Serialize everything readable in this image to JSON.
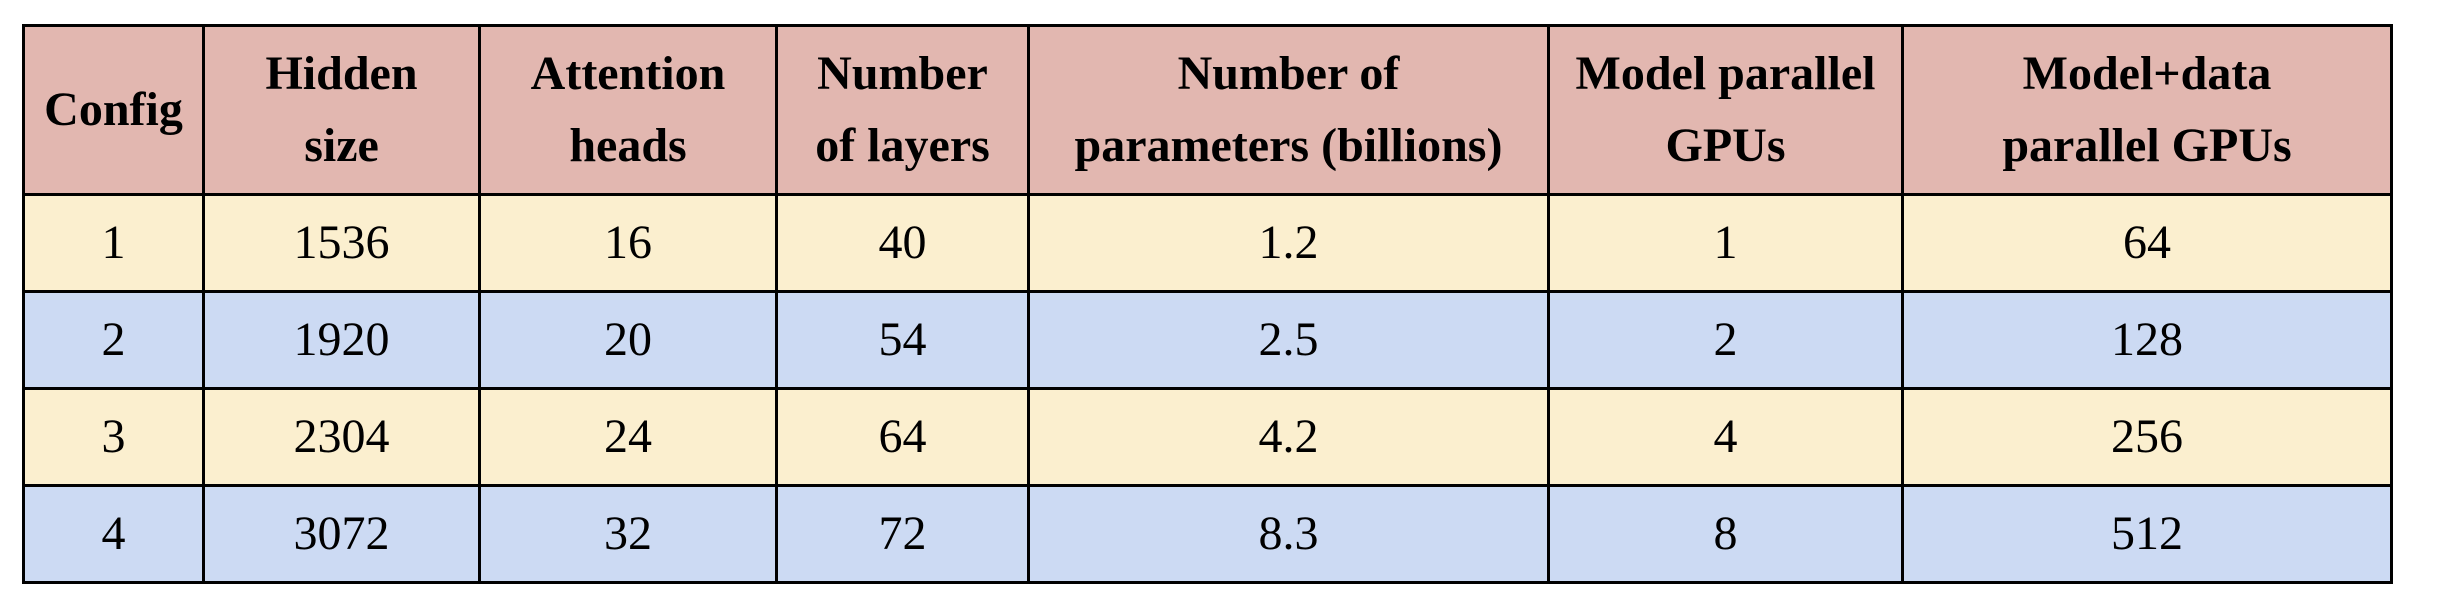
{
  "table": {
    "headers": [
      "Config",
      "Hidden\nsize",
      "Attention\nheads",
      "Number\nof layers",
      "Number of\nparameters (billions)",
      "Model parallel\nGPUs",
      "Model+data\nparallel GPUs"
    ],
    "rows": [
      [
        "1",
        "1536",
        "16",
        "40",
        "1.2",
        "1",
        "64"
      ],
      [
        "2",
        "1920",
        "20",
        "54",
        "2.5",
        "2",
        "128"
      ],
      [
        "3",
        "2304",
        "24",
        "64",
        "4.2",
        "4",
        "256"
      ],
      [
        "4",
        "3072",
        "32",
        "72",
        "8.3",
        "8",
        "512"
      ]
    ]
  },
  "colors": {
    "header_bg": "#e2b7b0",
    "row_odd_bg": "#fbefcf",
    "row_even_bg": "#ccdaf3",
    "border": "#000000"
  }
}
